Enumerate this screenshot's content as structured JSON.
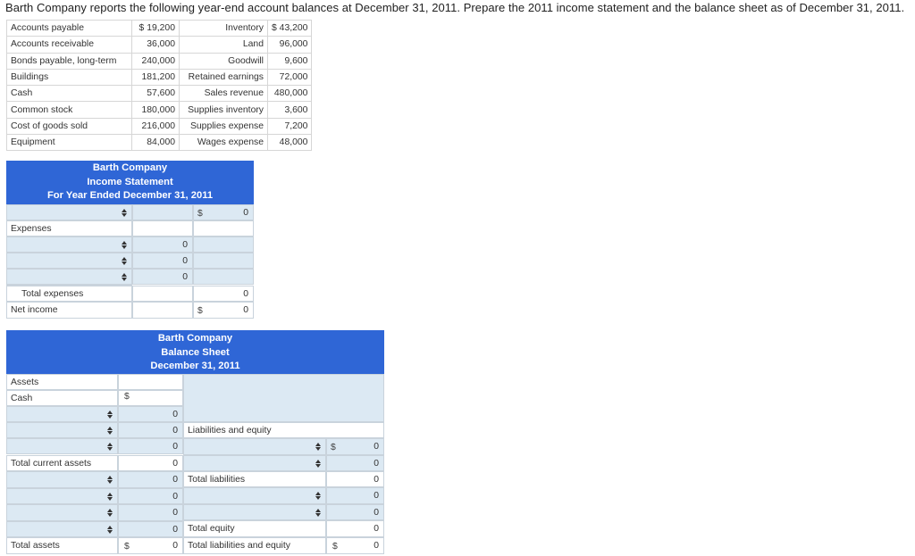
{
  "prompt": "Barth Company reports the following year-end account balances at December 31, 2011. Prepare the 2011 income statement and the balance sheet as of December 31, 2011.",
  "balances": [
    {
      "name": "Accounts payable",
      "amount": "$ 19,200",
      "name2": "Inventory",
      "amount2": "$ 43,200"
    },
    {
      "name": "Accounts receivable",
      "amount": "36,000",
      "name2": "Land",
      "amount2": "96,000"
    },
    {
      "name": "Bonds payable, long-term",
      "amount": "240,000",
      "name2": "Goodwill",
      "amount2": "9,600"
    },
    {
      "name": "Buildings",
      "amount": "181,200",
      "name2": "Retained earnings",
      "amount2": "72,000"
    },
    {
      "name": "Cash",
      "amount": "57,600",
      "name2": "Sales revenue",
      "amount2": "480,000"
    },
    {
      "name": "Common stock",
      "amount": "180,000",
      "name2": "Supplies inventory",
      "amount2": "3,600"
    },
    {
      "name": "Cost of goods sold",
      "amount": "216,000",
      "name2": "Supplies expense",
      "amount2": "7,200"
    },
    {
      "name": "Equipment",
      "amount": "84,000",
      "name2": "Wages expense",
      "amount2": "48,000"
    }
  ],
  "income": {
    "company": "Barth Company",
    "title": "Income Statement",
    "period": "For Year Ended December 31, 2011",
    "dollar": "$",
    "revenue_total": "0",
    "expenses_label": "Expenses",
    "expense_values": [
      "0",
      "0",
      "0"
    ],
    "total_expenses_label": "Total expenses",
    "total_expenses_value": "0",
    "net_income_label": "Net income",
    "net_income_value": "0"
  },
  "balance": {
    "company": "Barth Company",
    "title": "Balance Sheet",
    "date": "December 31, 2011",
    "dollar": "$",
    "assets_label": "Assets",
    "cash_label": "Cash",
    "current_values": [
      "0",
      "0",
      "0"
    ],
    "total_current_assets_label": "Total current assets",
    "total_current_assets_value": "0",
    "noncurrent_values": [
      "0",
      "0",
      "0",
      "0"
    ],
    "total_assets_label": "Total assets",
    "total_assets_value": "0",
    "liabilities_equity_label": "Liabilities and equity",
    "liability_values": [
      "0",
      "0"
    ],
    "total_liabilities_label": "Total liabilities",
    "total_liabilities_value": "0",
    "equity_values": [
      "0",
      "0"
    ],
    "total_equity_label": "Total equity",
    "total_equity_value": "0",
    "total_le_label": "Total liabilities and equity",
    "total_le_value": "0"
  }
}
